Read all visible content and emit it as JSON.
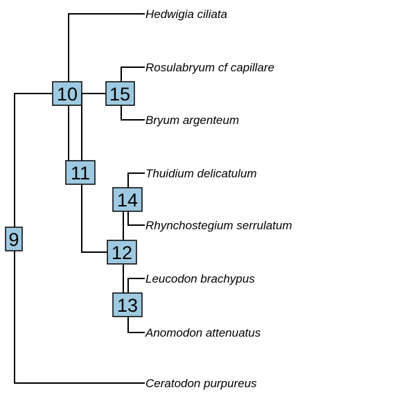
{
  "tree": {
    "tips": [
      {
        "id": "hedwigia",
        "label": "Hedwigia ciliata"
      },
      {
        "id": "rosulabryum",
        "label": "Rosulabryum cf capillare"
      },
      {
        "id": "bryum",
        "label": "Bryum argenteum"
      },
      {
        "id": "thuidium",
        "label": "Thuidium delicatulum"
      },
      {
        "id": "rhynchostegium",
        "label": "Rhynchostegium serrulatum"
      },
      {
        "id": "leucodon",
        "label": "Leucodon brachypus"
      },
      {
        "id": "anomodon",
        "label": "Anomodon attenuatus"
      },
      {
        "id": "ceratodon",
        "label": "Ceratodon purpureus"
      }
    ],
    "nodes": [
      {
        "id": "n9",
        "label": "9"
      },
      {
        "id": "n10",
        "label": "10"
      },
      {
        "id": "n11",
        "label": "11"
      },
      {
        "id": "n12",
        "label": "12"
      },
      {
        "id": "n13",
        "label": "13"
      },
      {
        "id": "n14",
        "label": "14"
      },
      {
        "id": "n15",
        "label": "15"
      }
    ],
    "node_color": "#9ecae1",
    "edge_color": "#000000"
  }
}
